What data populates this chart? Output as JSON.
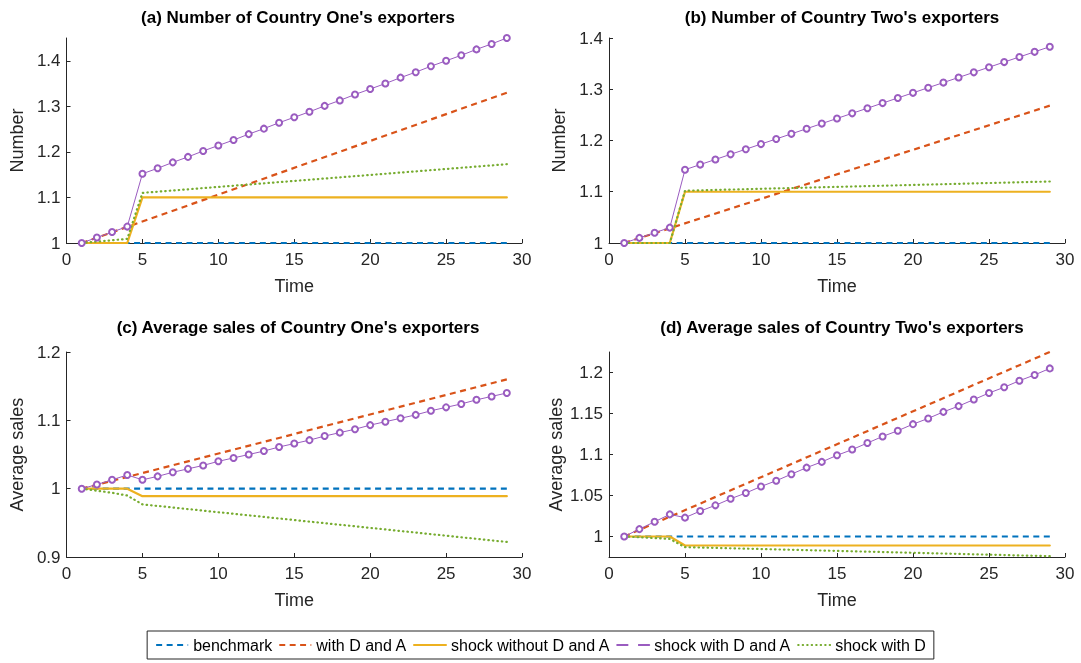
{
  "chart_data": [
    {
      "type": "line",
      "title": "(a) Number of Country One's exporters",
      "xlabel": "Time",
      "ylabel": "Number",
      "xlim": [
        0,
        30
      ],
      "xticks": [
        0,
        5,
        10,
        15,
        20,
        25,
        30
      ],
      "ylim": [
        1,
        1.45
      ],
      "yticks": [
        1,
        1.1,
        1.2,
        1.3,
        1.4
      ],
      "x": [
        1,
        2,
        3,
        4,
        5,
        6,
        7,
        8,
        9,
        10,
        11,
        12,
        13,
        14,
        15,
        16,
        17,
        18,
        19,
        20,
        21,
        22,
        23,
        24,
        25,
        26,
        27,
        28,
        29
      ],
      "series": [
        {
          "color": "#0072bd",
          "line_style": "dashed",
          "marker": "none",
          "x": [
            1,
            29
          ],
          "values": [
            1,
            1
          ]
        },
        {
          "color": "#d95319",
          "line_style": "dashed",
          "marker": "none",
          "x": [
            1,
            29
          ],
          "values": [
            1,
            1.33
          ]
        },
        {
          "color": "#edb120",
          "line_style": "solid",
          "marker": "none",
          "x": [
            1,
            4,
            5,
            29
          ],
          "values": [
            1,
            1,
            1.1,
            1.1
          ]
        },
        {
          "color": "#9a5cc0",
          "line_style": "solid",
          "marker": "circle",
          "values": [
            1,
            1.012,
            1.024,
            1.036,
            1.152,
            1.164,
            1.177,
            1.189,
            1.202,
            1.214,
            1.226,
            1.239,
            1.251,
            1.264,
            1.276,
            1.288,
            1.301,
            1.313,
            1.326,
            1.338,
            1.35,
            1.363,
            1.375,
            1.388,
            1.4,
            1.412,
            1.425,
            1.437,
            1.45
          ]
        },
        {
          "color": "#77ac30",
          "line_style": "dotted",
          "marker": "none",
          "x": [
            1,
            4,
            5,
            29
          ],
          "values": [
            1,
            1.009,
            1.11,
            1.173
          ]
        }
      ]
    },
    {
      "type": "line",
      "title": "(b) Number of Country Two's exporters",
      "xlabel": "Time",
      "ylabel": "Number",
      "xlim": [
        0,
        30
      ],
      "xticks": [
        0,
        5,
        10,
        15,
        20,
        25,
        30
      ],
      "ylim": [
        1,
        1.4
      ],
      "yticks": [
        1,
        1.1,
        1.2,
        1.3,
        1.4
      ],
      "x": [
        1,
        2,
        3,
        4,
        5,
        6,
        7,
        8,
        9,
        10,
        11,
        12,
        13,
        14,
        15,
        16,
        17,
        18,
        19,
        20,
        21,
        22,
        23,
        24,
        25,
        26,
        27,
        28,
        29
      ],
      "series": [
        {
          "color": "#0072bd",
          "line_style": "dashed",
          "marker": "none",
          "x": [
            1,
            29
          ],
          "values": [
            1,
            1
          ]
        },
        {
          "color": "#d95319",
          "line_style": "dashed",
          "marker": "none",
          "x": [
            1,
            29
          ],
          "values": [
            1,
            1.268
          ]
        },
        {
          "color": "#edb120",
          "line_style": "solid",
          "marker": "none",
          "x": [
            1,
            4,
            5,
            29
          ],
          "values": [
            1,
            1,
            1.1,
            1.1
          ]
        },
        {
          "color": "#9a5cc0",
          "line_style": "solid",
          "marker": "circle",
          "values": [
            1,
            1.01,
            1.02,
            1.03,
            1.143,
            1.153,
            1.163,
            1.173,
            1.183,
            1.193,
            1.203,
            1.213,
            1.223,
            1.233,
            1.243,
            1.253,
            1.263,
            1.273,
            1.283,
            1.293,
            1.303,
            1.313,
            1.323,
            1.333,
            1.343,
            1.353,
            1.363,
            1.373,
            1.383
          ]
        },
        {
          "color": "#77ac30",
          "line_style": "dotted",
          "marker": "none",
          "x": [
            1,
            4,
            5,
            29
          ],
          "values": [
            1,
            1,
            1.102,
            1.12
          ]
        }
      ]
    },
    {
      "type": "line",
      "title": "(c) Average sales of Country One's exporters",
      "xlabel": "Time",
      "ylabel": "Average sales",
      "xlim": [
        0,
        30
      ],
      "xticks": [
        0,
        5,
        10,
        15,
        20,
        25,
        30
      ],
      "ylim": [
        0.9,
        1.2
      ],
      "yticks": [
        0.9,
        1,
        1.1,
        1.2
      ],
      "x": [
        1,
        2,
        3,
        4,
        5,
        6,
        7,
        8,
        9,
        10,
        11,
        12,
        13,
        14,
        15,
        16,
        17,
        18,
        19,
        20,
        21,
        22,
        23,
        24,
        25,
        26,
        27,
        28,
        29
      ],
      "series": [
        {
          "color": "#0072bd",
          "line_style": "dashed",
          "marker": "none",
          "x": [
            1,
            29
          ],
          "values": [
            1,
            1
          ]
        },
        {
          "color": "#d95319",
          "line_style": "dashed",
          "marker": "none",
          "x": [
            1,
            29
          ],
          "values": [
            1,
            1.16
          ]
        },
        {
          "color": "#edb120",
          "line_style": "solid",
          "marker": "none",
          "x": [
            1,
            4,
            5,
            29
          ],
          "values": [
            1,
            1,
            0.989,
            0.989
          ]
        },
        {
          "color": "#9a5cc0",
          "line_style": "solid",
          "marker": "circle",
          "values": [
            1,
            1.006,
            1.013,
            1.02,
            1.013,
            1.018,
            1.024,
            1.029,
            1.034,
            1.04,
            1.045,
            1.05,
            1.055,
            1.061,
            1.066,
            1.071,
            1.077,
            1.082,
            1.087,
            1.093,
            1.098,
            1.103,
            1.108,
            1.114,
            1.119,
            1.124,
            1.13,
            1.135,
            1.14
          ]
        },
        {
          "color": "#77ac30",
          "line_style": "dotted",
          "marker": "none",
          "x": [
            1,
            2,
            3,
            4,
            5,
            29
          ],
          "values": [
            1,
            0.997,
            0.994,
            0.99,
            0.977,
            0.922
          ]
        }
      ]
    },
    {
      "type": "line",
      "title": "(d) Average sales of Country Two's exporters",
      "xlabel": "Time",
      "ylabel": "Average sales",
      "xlim": [
        0,
        30
      ],
      "xticks": [
        0,
        5,
        10,
        15,
        20,
        25,
        30
      ],
      "ylim": [
        0.975,
        1.225
      ],
      "yticks": [
        1,
        1.05,
        1.1,
        1.15,
        1.2
      ],
      "legend": "bottom",
      "x": [
        1,
        2,
        3,
        4,
        5,
        6,
        7,
        8,
        9,
        10,
        11,
        12,
        13,
        14,
        15,
        16,
        17,
        18,
        19,
        20,
        21,
        22,
        23,
        24,
        25,
        26,
        27,
        28,
        29
      ],
      "series": [
        {
          "name": "benchmark",
          "color": "#0072bd",
          "line_style": "dashed",
          "marker": "none",
          "x": [
            1,
            29
          ],
          "values": [
            1,
            1
          ]
        },
        {
          "name": "with D and A",
          "color": "#d95319",
          "line_style": "dashed",
          "marker": "none",
          "x": [
            1,
            29
          ],
          "values": [
            1,
            1.225
          ]
        },
        {
          "name": "shock without D and A",
          "color": "#edb120",
          "line_style": "solid",
          "marker": "none",
          "x": [
            1,
            4,
            5,
            29
          ],
          "values": [
            1,
            1,
            0.989,
            0.989
          ]
        },
        {
          "name": "shock with D and A",
          "color": "#9a5cc0",
          "line_style": "solid",
          "marker": "circle",
          "values": [
            1,
            1.009,
            1.018,
            1.027,
            1.023,
            1.031,
            1.038,
            1.046,
            1.053,
            1.061,
            1.068,
            1.076,
            1.084,
            1.091,
            1.099,
            1.106,
            1.114,
            1.122,
            1.129,
            1.137,
            1.144,
            1.152,
            1.159,
            1.167,
            1.175,
            1.182,
            1.19,
            1.197,
            1.205
          ]
        },
        {
          "name": "shock with D",
          "color": "#77ac30",
          "line_style": "dotted",
          "marker": "none",
          "x": [
            1,
            4,
            5,
            29
          ],
          "values": [
            1,
            0.997,
            0.987,
            0.976
          ]
        }
      ]
    }
  ]
}
